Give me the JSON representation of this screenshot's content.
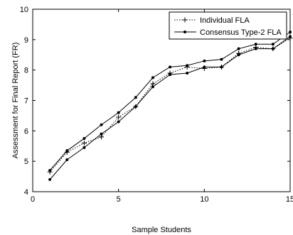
{
  "chart_data": {
    "type": "line",
    "title": "",
    "xlabel": "Sample Students",
    "ylabel": "Assessment for Final Report (FR)",
    "xlim": [
      0,
      15
    ],
    "ylim": [
      4,
      10
    ],
    "xticks": [
      0,
      5,
      10,
      15
    ],
    "yticks": [
      4,
      5,
      6,
      7,
      8,
      9,
      10
    ],
    "grid": false,
    "legend_position": "top-right",
    "x": [
      1,
      2,
      3,
      4,
      5,
      6,
      7,
      8,
      9,
      10,
      11,
      12,
      13,
      14,
      15
    ],
    "series": [
      {
        "name": "Individual FLA",
        "style": "dotted",
        "marker": "plus",
        "color": "#000000",
        "values": [
          4.65,
          5.3,
          5.6,
          5.8,
          6.45,
          6.8,
          7.55,
          7.9,
          8.1,
          8.05,
          8.1,
          8.55,
          8.75,
          8.7,
          9.05
        ]
      },
      {
        "name": "Consensus Type-2 FLA",
        "style": "solid",
        "marker": "dot",
        "color": "#000000",
        "upper": [
          4.7,
          5.35,
          5.75,
          6.2,
          6.6,
          7.1,
          7.75,
          8.1,
          8.15,
          8.3,
          8.35,
          8.7,
          8.85,
          8.85,
          9.25
        ],
        "lower": [
          4.4,
          5.05,
          5.45,
          5.9,
          6.3,
          6.8,
          7.45,
          7.85,
          7.9,
          8.1,
          8.1,
          8.5,
          8.7,
          8.7,
          9.1
        ]
      }
    ]
  }
}
